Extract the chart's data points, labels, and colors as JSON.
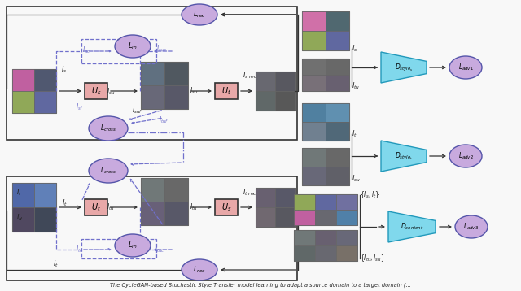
{
  "fig_width": 6.4,
  "fig_height": 3.58,
  "dpi": 100,
  "pink": "#e8a8a8",
  "purple": "#c8aade",
  "cyan": "#80d8ec",
  "dpc": "#7070cc",
  "dark": "#333333",
  "caption": "The CycleGAN-based Stochastic Style Transfer model learning to adapt a source domain to a target domain (..."
}
